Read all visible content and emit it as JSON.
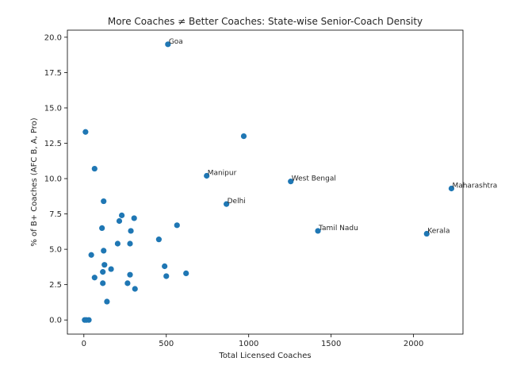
{
  "chart_data": {
    "type": "scatter",
    "title": "More Coaches ≠ Better Coaches: State-wise Senior-Coach Density",
    "xlabel": "Total Licensed Coaches",
    "ylabel": "% of B+ Coaches (AFC B, A, Pro)",
    "xlim": [
      -100,
      2300
    ],
    "ylim": [
      -1.0,
      20.5
    ],
    "xticks": [
      0,
      500,
      1000,
      1500,
      2000
    ],
    "yticks": [
      0.0,
      2.5,
      5.0,
      7.5,
      10.0,
      12.5,
      15.0,
      17.5,
      20.0
    ],
    "xtick_labels": [
      "0",
      "500",
      "1000",
      "1500",
      "2000"
    ],
    "ytick_labels": [
      "0.0",
      "2.5",
      "5.0",
      "7.5",
      "10.0",
      "12.5",
      "15.0",
      "17.5",
      "20.0"
    ],
    "marker_color": "#1f77b4",
    "points": [
      {
        "x": 510,
        "y": 19.5,
        "label": "Goa"
      },
      {
        "x": 10,
        "y": 13.3
      },
      {
        "x": 970,
        "y": 13.0
      },
      {
        "x": 65,
        "y": 10.7
      },
      {
        "x": 745,
        "y": 10.2,
        "label": "Manipur"
      },
      {
        "x": 1255,
        "y": 9.8,
        "label": "West Bengal"
      },
      {
        "x": 2230,
        "y": 9.3,
        "label": "Maharashtra"
      },
      {
        "x": 120,
        "y": 8.4
      },
      {
        "x": 865,
        "y": 8.2,
        "label": "Delhi"
      },
      {
        "x": 230,
        "y": 7.4
      },
      {
        "x": 305,
        "y": 7.2
      },
      {
        "x": 215,
        "y": 7.0
      },
      {
        "x": 565,
        "y": 6.7
      },
      {
        "x": 110,
        "y": 6.5
      },
      {
        "x": 285,
        "y": 6.3
      },
      {
        "x": 1420,
        "y": 6.3,
        "label": "Tamil Nadu"
      },
      {
        "x": 2080,
        "y": 6.1,
        "label": "Kerala"
      },
      {
        "x": 455,
        "y": 5.7
      },
      {
        "x": 205,
        "y": 5.4
      },
      {
        "x": 280,
        "y": 5.4
      },
      {
        "x": 120,
        "y": 4.9
      },
      {
        "x": 45,
        "y": 4.6
      },
      {
        "x": 125,
        "y": 3.9
      },
      {
        "x": 490,
        "y": 3.8
      },
      {
        "x": 165,
        "y": 3.6
      },
      {
        "x": 115,
        "y": 3.4
      },
      {
        "x": 620,
        "y": 3.3
      },
      {
        "x": 280,
        "y": 3.2
      },
      {
        "x": 500,
        "y": 3.1
      },
      {
        "x": 65,
        "y": 3.0
      },
      {
        "x": 265,
        "y": 2.6
      },
      {
        "x": 115,
        "y": 2.6
      },
      {
        "x": 310,
        "y": 2.2
      },
      {
        "x": 140,
        "y": 1.3
      },
      {
        "x": 5,
        "y": 0.0
      },
      {
        "x": 15,
        "y": 0.0
      },
      {
        "x": 30,
        "y": 0.0
      }
    ]
  }
}
